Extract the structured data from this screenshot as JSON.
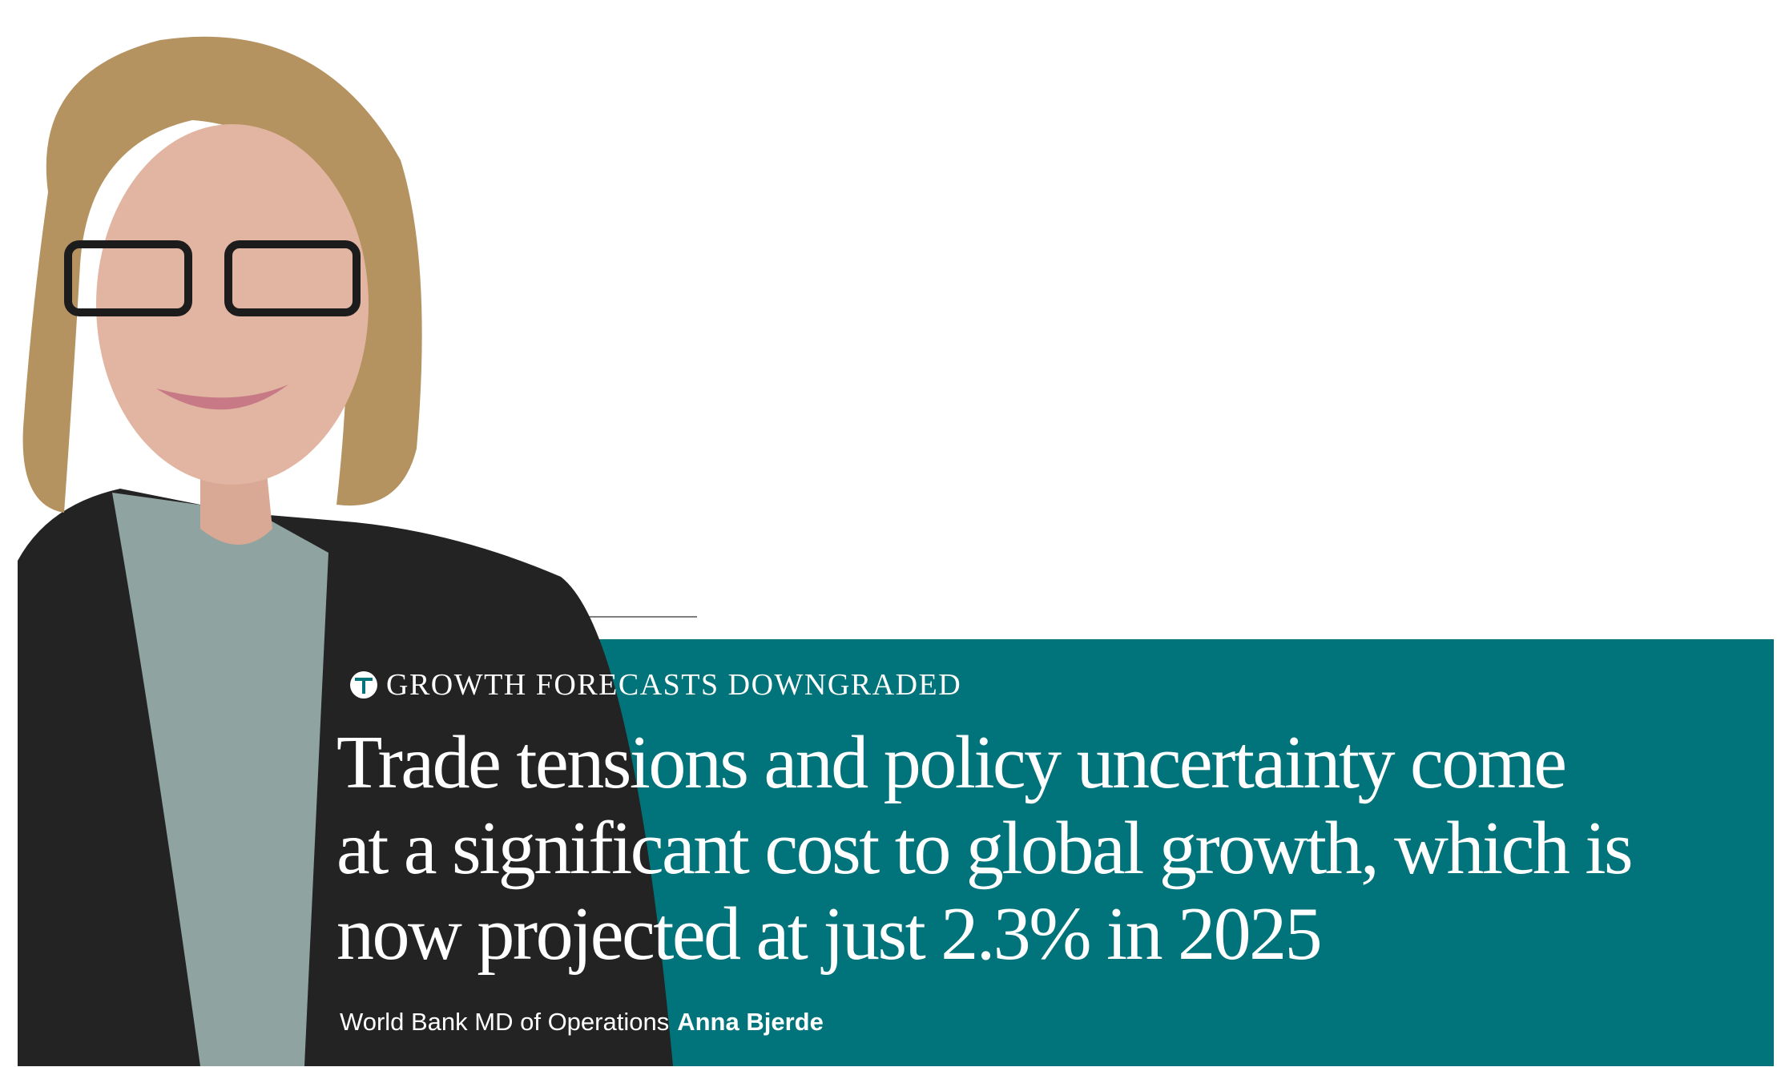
{
  "kicker": "GROWTH FORECASTS DOWNGRADED",
  "quote": {
    "lines": [
      "Trade tensions and policy uncertainty come",
      "at a significant cost to global growth, which is",
      "now projected at just 2.3% in 2025"
    ]
  },
  "attribution": {
    "role": "World Bank MD of Operations",
    "name": "Anna Bjerde"
  }
}
